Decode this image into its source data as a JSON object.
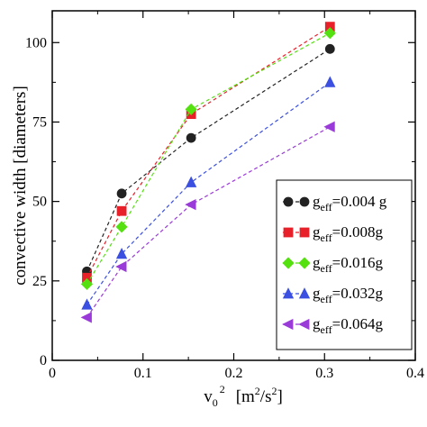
{
  "chart_data": {
    "type": "line",
    "xlabel": "v",
    "xlabel_sub": "0",
    "xlabel_sup": "2",
    "xlabel_units": "[m",
    "xlabel_units_sup": "2",
    "xlabel_units_tail": "/s",
    "xlabel_units_sup2": "2",
    "xlabel_units_close": "]",
    "ylabel": "convective width   [diameters]",
    "xlim": [
      0,
      0.4
    ],
    "ylim": [
      0,
      110
    ],
    "xticks": [
      0,
      0.1,
      0.2,
      0.3,
      0.4
    ],
    "xtick_labels": [
      "0",
      "0.1",
      "0.2",
      "0.3",
      "0.4"
    ],
    "yticks": [
      0,
      25,
      50,
      75,
      100
    ],
    "ytick_labels": [
      "0",
      "25",
      "50",
      "75",
      "100"
    ],
    "x": [
      0.0382,
      0.0765,
      0.153,
      0.306
    ],
    "legend_position": "bottom-right",
    "grid": false,
    "series": [
      {
        "legend_prefix": "g",
        "legend_sub": "eff",
        "legend_value": "=0.004 g",
        "color": "#222222",
        "marker": "circle",
        "values": [
          28,
          52.5,
          70,
          98
        ]
      },
      {
        "legend_prefix": "g",
        "legend_sub": "eff",
        "legend_value": "=0.008g",
        "color": "#e8202a",
        "marker": "square",
        "values": [
          26,
          47,
          77.5,
          105
        ]
      },
      {
        "legend_prefix": "g",
        "legend_sub": "eff",
        "legend_value": "=0.016g",
        "color": "#55e010",
        "marker": "diamond",
        "values": [
          24,
          42,
          79,
          103
        ]
      },
      {
        "legend_prefix": "g",
        "legend_sub": "eff",
        "legend_value": "=0.032g",
        "color": "#3b4fe0",
        "marker": "triangle-up",
        "values": [
          17.5,
          33.5,
          56,
          87.5
        ]
      },
      {
        "legend_prefix": "g",
        "legend_sub": "eff",
        "legend_value": "=0.064g",
        "color": "#9a3ad8",
        "marker": "triangle-left",
        "values": [
          13.5,
          29.5,
          49,
          73.5
        ]
      }
    ]
  }
}
